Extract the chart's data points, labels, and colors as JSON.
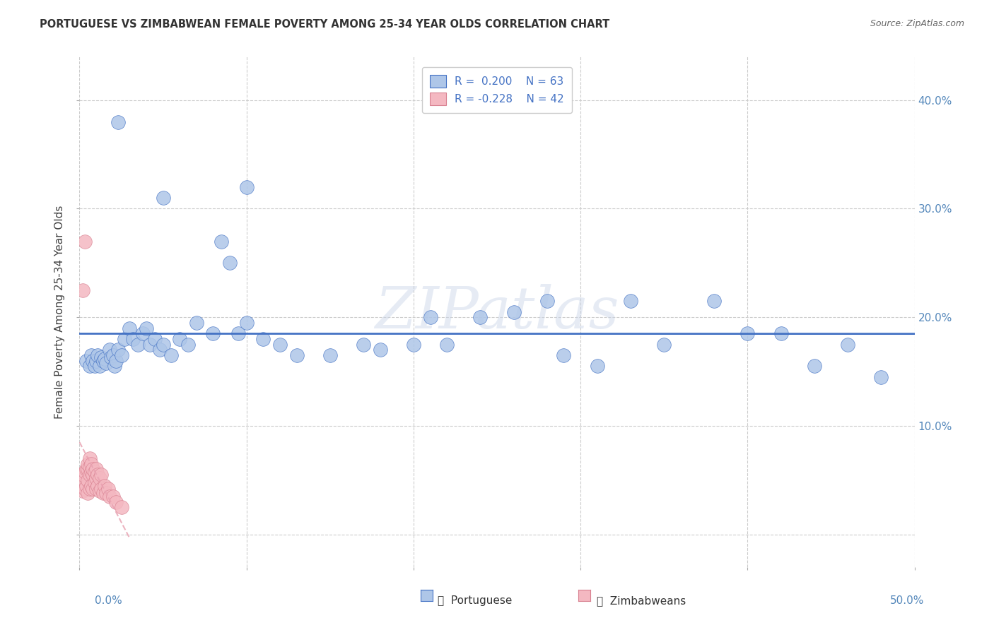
{
  "title": "PORTUGUESE VS ZIMBABWEAN FEMALE POVERTY AMONG 25-34 YEAR OLDS CORRELATION CHART",
  "source": "Source: ZipAtlas.com",
  "ylabel": "Female Poverty Among 25-34 Year Olds",
  "xlim": [
    0.0,
    0.5
  ],
  "ylim": [
    -0.03,
    0.44
  ],
  "color_portuguese": "#aec6e8",
  "color_zimbabwean": "#f4b8c1",
  "color_line_portuguese": "#4472c4",
  "color_line_zimbabwean": "#e8a0b0",
  "watermark": "ZIPatlas",
  "port_x": [
    0.004,
    0.006,
    0.007,
    0.008,
    0.009,
    0.01,
    0.011,
    0.012,
    0.013,
    0.014,
    0.015,
    0.016,
    0.018,
    0.019,
    0.02,
    0.021,
    0.022,
    0.023,
    0.025,
    0.027,
    0.03,
    0.032,
    0.035,
    0.038,
    0.04,
    0.042,
    0.045,
    0.048,
    0.05,
    0.055,
    0.06,
    0.065,
    0.07,
    0.08,
    0.085,
    0.09,
    0.095,
    0.1,
    0.11,
    0.12,
    0.13,
    0.15,
    0.17,
    0.18,
    0.2,
    0.21,
    0.22,
    0.24,
    0.26,
    0.28,
    0.29,
    0.31,
    0.33,
    0.35,
    0.38,
    0.4,
    0.42,
    0.44,
    0.46,
    0.48,
    0.023,
    0.05,
    0.1
  ],
  "port_y": [
    0.16,
    0.155,
    0.165,
    0.16,
    0.155,
    0.16,
    0.165,
    0.155,
    0.163,
    0.16,
    0.162,
    0.158,
    0.17,
    0.163,
    0.165,
    0.155,
    0.16,
    0.17,
    0.165,
    0.18,
    0.19,
    0.18,
    0.175,
    0.185,
    0.19,
    0.175,
    0.18,
    0.17,
    0.175,
    0.165,
    0.18,
    0.175,
    0.195,
    0.185,
    0.27,
    0.25,
    0.185,
    0.195,
    0.18,
    0.175,
    0.165,
    0.165,
    0.175,
    0.17,
    0.175,
    0.2,
    0.175,
    0.2,
    0.205,
    0.215,
    0.165,
    0.155,
    0.215,
    0.175,
    0.215,
    0.185,
    0.185,
    0.155,
    0.175,
    0.145,
    0.38,
    0.31,
    0.32
  ],
  "zimb_x": [
    0.001,
    0.002,
    0.002,
    0.003,
    0.003,
    0.004,
    0.004,
    0.005,
    0.005,
    0.005,
    0.005,
    0.006,
    0.006,
    0.006,
    0.006,
    0.007,
    0.007,
    0.007,
    0.008,
    0.008,
    0.008,
    0.009,
    0.009,
    0.01,
    0.01,
    0.01,
    0.011,
    0.011,
    0.012,
    0.012,
    0.013,
    0.013,
    0.014,
    0.015,
    0.016,
    0.017,
    0.018,
    0.02,
    0.022,
    0.025,
    0.003,
    0.002
  ],
  "zimb_y": [
    0.05,
    0.04,
    0.055,
    0.042,
    0.058,
    0.045,
    0.06,
    0.038,
    0.05,
    0.06,
    0.065,
    0.042,
    0.055,
    0.062,
    0.07,
    0.045,
    0.058,
    0.065,
    0.042,
    0.055,
    0.06,
    0.048,
    0.058,
    0.042,
    0.052,
    0.06,
    0.045,
    0.055,
    0.04,
    0.052,
    0.042,
    0.055,
    0.038,
    0.045,
    0.038,
    0.042,
    0.035,
    0.035,
    0.03,
    0.025,
    0.27,
    0.225
  ]
}
